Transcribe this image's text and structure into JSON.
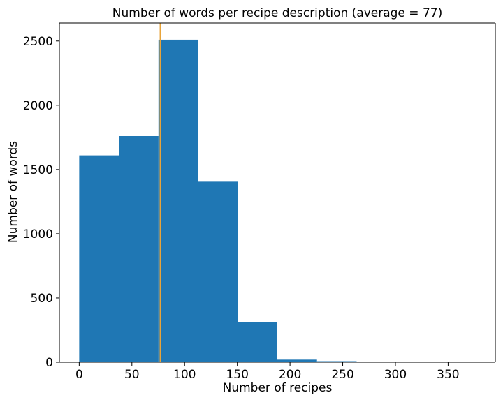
{
  "chart_data": {
    "type": "bar",
    "title": "Number of words per recipe description (average = 77)",
    "xlabel": "Number of recipes",
    "ylabel": "Number of words",
    "xlim": [
      -18.8,
      394.8
    ],
    "ylim": [
      0,
      2640
    ],
    "xticks": [
      0,
      50,
      100,
      150,
      200,
      250,
      300,
      350
    ],
    "yticks": [
      0,
      500,
      1000,
      1500,
      2000,
      2500
    ],
    "grid": false,
    "legend": "none",
    "bar_color": "#1f77b4",
    "mean_line": {
      "x": 77,
      "color": "#e8a43a"
    },
    "bins": [
      {
        "start": 0,
        "end": 37.6,
        "value": 1610
      },
      {
        "start": 37.6,
        "end": 75.2,
        "value": 1760
      },
      {
        "start": 75.2,
        "end": 112.8,
        "value": 2510
      },
      {
        "start": 112.8,
        "end": 150.4,
        "value": 1405
      },
      {
        "start": 150.4,
        "end": 188.0,
        "value": 315
      },
      {
        "start": 188.0,
        "end": 225.6,
        "value": 20
      },
      {
        "start": 225.6,
        "end": 263.2,
        "value": 8
      },
      {
        "start": 263.2,
        "end": 300.8,
        "value": 2
      },
      {
        "start": 300.8,
        "end": 338.4,
        "value": 1
      },
      {
        "start": 338.4,
        "end": 376.0,
        "value": 1
      }
    ]
  }
}
